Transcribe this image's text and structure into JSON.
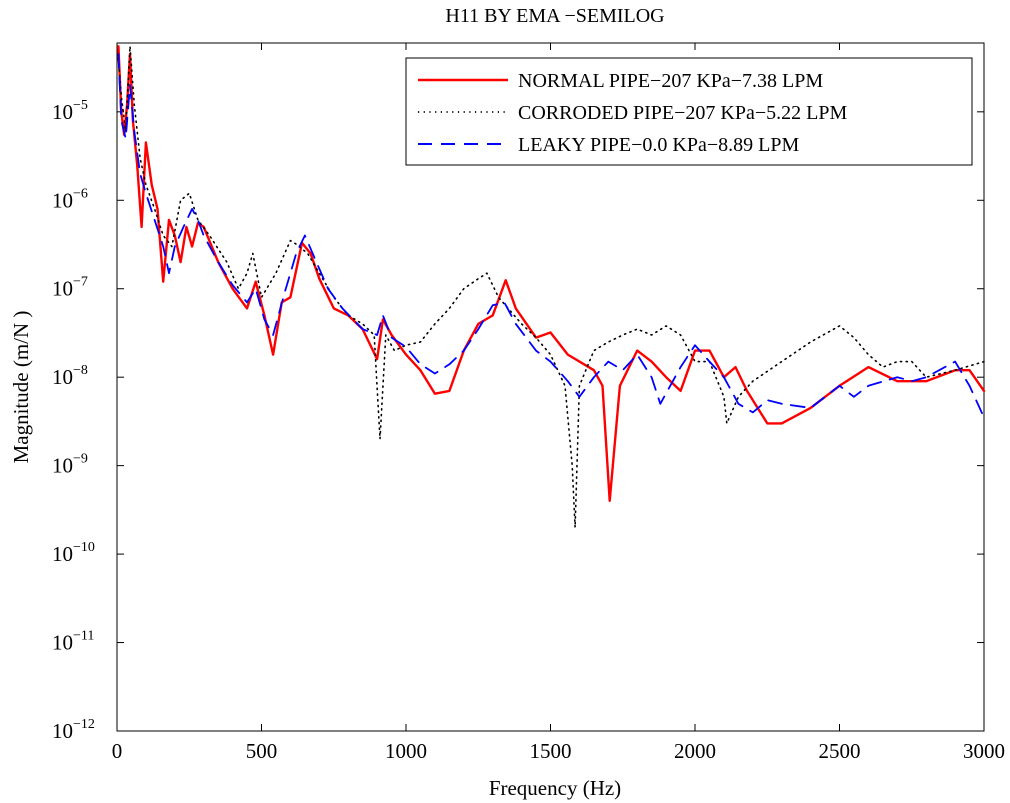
{
  "chart_data": {
    "type": "line",
    "title": "H11 BY EMA   −SEMILOG",
    "xlabel": "Frequency (Hz)",
    "ylabel": "Magnitude (m/N )",
    "xlim": [
      0,
      3000
    ],
    "ylim": [
      1e-12,
      6e-05
    ],
    "yscale": "log",
    "grid": false,
    "legend_position": "top-right",
    "x_ticks": [
      0,
      500,
      1000,
      1500,
      2000,
      2500,
      3000
    ],
    "x_tick_labels": [
      "0",
      "500",
      "1000",
      "1500",
      "2000",
      "2500",
      "3000"
    ],
    "y_ticks": [
      -12,
      -11,
      -10,
      -9,
      -8,
      -7,
      -6,
      -5
    ],
    "y_tick_base": "10",
    "y_tick_exponents": [
      "−12",
      "−11",
      "−10",
      "−9",
      "−8",
      "−7",
      "−6",
      "−5"
    ],
    "series": [
      {
        "name": "NORMAL PIPE−207 KPa−7.38 LPM",
        "color": "#ff0000",
        "dash": "solid",
        "points": [
          [
            5,
            5.5e-05
          ],
          [
            15,
            1e-05
          ],
          [
            25,
            5.5e-06
          ],
          [
            35,
            1.2e-05
          ],
          [
            45,
            4.5e-05
          ],
          [
            55,
            8e-06
          ],
          [
            70,
            2.5e-06
          ],
          [
            85,
            5e-07
          ],
          [
            100,
            4.5e-06
          ],
          [
            120,
            1.5e-06
          ],
          [
            140,
            8e-07
          ],
          [
            160,
            1.2e-07
          ],
          [
            180,
            6e-07
          ],
          [
            200,
            4e-07
          ],
          [
            220,
            2e-07
          ],
          [
            240,
            5e-07
          ],
          [
            260,
            3e-07
          ],
          [
            280,
            5.5e-07
          ],
          [
            300,
            5e-07
          ],
          [
            350,
            2e-07
          ],
          [
            400,
            1e-07
          ],
          [
            450,
            6e-08
          ],
          [
            480,
            1.2e-07
          ],
          [
            510,
            5e-08
          ],
          [
            540,
            1.8e-08
          ],
          [
            570,
            7e-08
          ],
          [
            600,
            8e-08
          ],
          [
            640,
            3.3e-07
          ],
          [
            670,
            2.5e-07
          ],
          [
            700,
            1.3e-07
          ],
          [
            750,
            6e-08
          ],
          [
            800,
            5e-08
          ],
          [
            850,
            3.5e-08
          ],
          [
            900,
            1.6e-08
          ],
          [
            920,
            4.5e-08
          ],
          [
            950,
            3e-08
          ],
          [
            1000,
            1.8e-08
          ],
          [
            1050,
            1.2e-08
          ],
          [
            1100,
            6.5e-09
          ],
          [
            1150,
            7e-09
          ],
          [
            1200,
            2e-08
          ],
          [
            1250,
            4e-08
          ],
          [
            1300,
            5e-08
          ],
          [
            1345,
            1.25e-07
          ],
          [
            1380,
            6e-08
          ],
          [
            1450,
            2.8e-08
          ],
          [
            1500,
            3.2e-08
          ],
          [
            1560,
            1.8e-08
          ],
          [
            1650,
            1.2e-08
          ],
          [
            1680,
            8e-09
          ],
          [
            1705,
            4e-10
          ],
          [
            1740,
            8e-09
          ],
          [
            1800,
            2e-08
          ],
          [
            1850,
            1.5e-08
          ],
          [
            1900,
            1e-08
          ],
          [
            1950,
            7e-09
          ],
          [
            2000,
            2e-08
          ],
          [
            2050,
            2e-08
          ],
          [
            2100,
            1e-08
          ],
          [
            2140,
            1.3e-08
          ],
          [
            2180,
            7e-09
          ],
          [
            2250,
            3e-09
          ],
          [
            2300,
            3e-09
          ],
          [
            2400,
            4.5e-09
          ],
          [
            2500,
            8e-09
          ],
          [
            2600,
            1.3e-08
          ],
          [
            2700,
            9e-09
          ],
          [
            2800,
            9e-09
          ],
          [
            2900,
            1.2e-08
          ],
          [
            2950,
            1.2e-08
          ],
          [
            3000,
            7e-09
          ]
        ]
      },
      {
        "name": "CORRODED PIPE−207 KPa−5.22 LPM",
        "color": "#000000",
        "dash": "dotted",
        "points": [
          [
            5,
            4e-05
          ],
          [
            15,
            1.5e-05
          ],
          [
            30,
            6e-06
          ],
          [
            45,
            5.5e-05
          ],
          [
            60,
            1.2e-05
          ],
          [
            80,
            3e-06
          ],
          [
            100,
            1.5e-06
          ],
          [
            130,
            8e-07
          ],
          [
            160,
            4e-07
          ],
          [
            190,
            3e-07
          ],
          [
            220,
            1e-06
          ],
          [
            250,
            1.2e-06
          ],
          [
            280,
            6e-07
          ],
          [
            320,
            4e-07
          ],
          [
            380,
            2e-07
          ],
          [
            420,
            1e-07
          ],
          [
            450,
            1.5e-07
          ],
          [
            470,
            2.5e-07
          ],
          [
            500,
            8e-08
          ],
          [
            550,
            1.5e-07
          ],
          [
            600,
            3.5e-07
          ],
          [
            620,
            3.2e-07
          ],
          [
            660,
            2.5e-07
          ],
          [
            700,
            1.5e-07
          ],
          [
            750,
            8e-08
          ],
          [
            800,
            5e-08
          ],
          [
            850,
            4e-08
          ],
          [
            890,
            3e-08
          ],
          [
            910,
            2e-09
          ],
          [
            930,
            3e-08
          ],
          [
            960,
            2e-08
          ],
          [
            1000,
            2.3e-08
          ],
          [
            1050,
            2.5e-08
          ],
          [
            1100,
            4e-08
          ],
          [
            1150,
            6e-08
          ],
          [
            1200,
            1e-07
          ],
          [
            1250,
            1.3e-07
          ],
          [
            1280,
            1.5e-07
          ],
          [
            1320,
            8e-08
          ],
          [
            1400,
            4e-08
          ],
          [
            1450,
            2.8e-08
          ],
          [
            1500,
            1.8e-08
          ],
          [
            1550,
            8e-09
          ],
          [
            1575,
            1e-09
          ],
          [
            1585,
            2e-10
          ],
          [
            1600,
            8e-09
          ],
          [
            1650,
            2e-08
          ],
          [
            1700,
            2.5e-08
          ],
          [
            1750,
            3e-08
          ],
          [
            1800,
            3.5e-08
          ],
          [
            1850,
            3e-08
          ],
          [
            1900,
            3.8e-08
          ],
          [
            1950,
            3e-08
          ],
          [
            2000,
            1.5e-08
          ],
          [
            2050,
            1.5e-08
          ],
          [
            2100,
            6e-09
          ],
          [
            2110,
            3e-09
          ],
          [
            2150,
            6e-09
          ],
          [
            2200,
            9e-09
          ],
          [
            2300,
            1.5e-08
          ],
          [
            2400,
            2.5e-08
          ],
          [
            2500,
            3.8e-08
          ],
          [
            2550,
            2.8e-08
          ],
          [
            2600,
            1.8e-08
          ],
          [
            2650,
            1.3e-08
          ],
          [
            2700,
            1.5e-08
          ],
          [
            2750,
            1.5e-08
          ],
          [
            2800,
            1e-08
          ],
          [
            2900,
            1.2e-08
          ],
          [
            3000,
            1.5e-08
          ]
        ]
      },
      {
        "name": "LEAKY PIPE−0.0 KPa−8.89 LPM",
        "color": "#0000ff",
        "dash": "dashed",
        "points": [
          [
            5,
            4.5e-05
          ],
          [
            15,
            8e-06
          ],
          [
            30,
            5e-06
          ],
          [
            45,
            2e-05
          ],
          [
            60,
            6e-06
          ],
          [
            80,
            2e-06
          ],
          [
            100,
            1.2e-06
          ],
          [
            130,
            6e-07
          ],
          [
            160,
            3e-07
          ],
          [
            180,
            1.5e-07
          ],
          [
            200,
            3e-07
          ],
          [
            230,
            5e-07
          ],
          [
            260,
            8e-07
          ],
          [
            280,
            6e-07
          ],
          [
            300,
            4e-07
          ],
          [
            350,
            2e-07
          ],
          [
            400,
            1.1e-07
          ],
          [
            450,
            7e-08
          ],
          [
            480,
            1e-07
          ],
          [
            510,
            4.5e-08
          ],
          [
            540,
            3e-08
          ],
          [
            580,
            9e-08
          ],
          [
            620,
            2.5e-07
          ],
          [
            650,
            4e-07
          ],
          [
            690,
            2e-07
          ],
          [
            730,
            1e-07
          ],
          [
            780,
            6e-08
          ],
          [
            850,
            3.5e-08
          ],
          [
            900,
            3e-08
          ],
          [
            920,
            5e-08
          ],
          [
            950,
            2.8e-08
          ],
          [
            1000,
            2.2e-08
          ],
          [
            1050,
            1.4e-08
          ],
          [
            1100,
            1.1e-08
          ],
          [
            1150,
            1.4e-08
          ],
          [
            1200,
            2e-08
          ],
          [
            1250,
            3.5e-08
          ],
          [
            1300,
            6.5e-08
          ],
          [
            1340,
            7e-08
          ],
          [
            1380,
            4e-08
          ],
          [
            1450,
            2e-08
          ],
          [
            1500,
            1.5e-08
          ],
          [
            1560,
            9e-09
          ],
          [
            1600,
            6e-09
          ],
          [
            1650,
            1e-08
          ],
          [
            1700,
            1.5e-08
          ],
          [
            1750,
            1.2e-08
          ],
          [
            1800,
            1.8e-08
          ],
          [
            1850,
            1e-08
          ],
          [
            1880,
            5e-09
          ],
          [
            1950,
            1.3e-08
          ],
          [
            2000,
            2.3e-08
          ],
          [
            2050,
            1.5e-08
          ],
          [
            2100,
            1e-08
          ],
          [
            2150,
            5e-09
          ],
          [
            2200,
            4e-09
          ],
          [
            2250,
            5.5e-09
          ],
          [
            2300,
            5e-09
          ],
          [
            2400,
            4.5e-09
          ],
          [
            2500,
            8e-09
          ],
          [
            2550,
            6e-09
          ],
          [
            2600,
            8e-09
          ],
          [
            2700,
            1e-08
          ],
          [
            2750,
            9e-09
          ],
          [
            2800,
            1e-08
          ],
          [
            2900,
            1.5e-08
          ],
          [
            2950,
            8e-09
          ],
          [
            3000,
            3.5e-09
          ]
        ]
      }
    ]
  }
}
